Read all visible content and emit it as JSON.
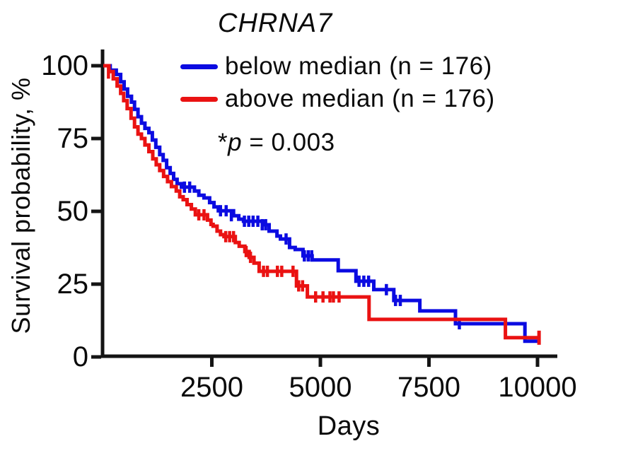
{
  "figure": {
    "title": "CHRNA7",
    "pvalue": {
      "prefix": "*",
      "symbol": "p",
      "rest": " = 0.003"
    }
  },
  "chart_data": {
    "type": "line",
    "variant": "kaplan-meier-step",
    "title": "CHRNA7",
    "xlabel": "Days",
    "ylabel": "Survival probability, %",
    "xlim": [
      0,
      10000
    ],
    "ylim": [
      0,
      100
    ],
    "x_ticks": [
      2500,
      5000,
      7500,
      10000
    ],
    "y_ticks": [
      100,
      75,
      50,
      25,
      0
    ],
    "grid": false,
    "legend_position": "top",
    "axis_color": "#141414",
    "annotation_pvalue": "*p = 0.003",
    "series": [
      {
        "id": "below-median",
        "name": "below median (n = 176)",
        "n": 176,
        "color": "#0b0be1",
        "steps": [
          [
            0,
            100
          ],
          [
            160,
            98.5
          ],
          [
            300,
            97
          ],
          [
            400,
            94.5
          ],
          [
            480,
            92
          ],
          [
            560,
            89.5
          ],
          [
            650,
            87.5
          ],
          [
            720,
            85
          ],
          [
            800,
            82.5
          ],
          [
            880,
            80.3
          ],
          [
            960,
            78.5
          ],
          [
            1050,
            77
          ],
          [
            1130,
            74.5
          ],
          [
            1210,
            72
          ],
          [
            1300,
            69.5
          ],
          [
            1380,
            67.5
          ],
          [
            1460,
            65
          ],
          [
            1540,
            63
          ],
          [
            1620,
            61
          ],
          [
            1700,
            59.5
          ],
          [
            1800,
            58.3
          ],
          [
            2100,
            57
          ],
          [
            2200,
            55.5
          ],
          [
            2320,
            54.6
          ],
          [
            2450,
            53
          ],
          [
            2550,
            51.5
          ],
          [
            2650,
            50.2
          ],
          [
            3000,
            48.5
          ],
          [
            3120,
            47.3
          ],
          [
            3230,
            46.6
          ],
          [
            3720,
            45.4
          ],
          [
            3820,
            43.2
          ],
          [
            4000,
            41.5
          ],
          [
            4080,
            40.5
          ],
          [
            4290,
            37.6
          ],
          [
            4420,
            36.9
          ],
          [
            4600,
            34.7
          ],
          [
            4810,
            33.3
          ],
          [
            5410,
            29.6
          ],
          [
            5820,
            26.0
          ],
          [
            6230,
            23.1
          ],
          [
            6690,
            19.4
          ],
          [
            7290,
            15.8
          ],
          [
            8110,
            11.4
          ],
          [
            9710,
            5.4
          ],
          [
            10000,
            5.4
          ]
        ],
        "censors": [
          [
            1870,
            58.3
          ],
          [
            1990,
            58.3
          ],
          [
            2700,
            50.2
          ],
          [
            2830,
            50.2
          ],
          [
            2950,
            48.5
          ],
          [
            3250,
            46.6
          ],
          [
            3350,
            46.6
          ],
          [
            3450,
            46.6
          ],
          [
            3560,
            46.6
          ],
          [
            3660,
            45.4
          ],
          [
            3740,
            45.4
          ],
          [
            4210,
            40.5
          ],
          [
            4630,
            34.7
          ],
          [
            4720,
            34.7
          ],
          [
            4800,
            34.7
          ],
          [
            5890,
            26.0
          ],
          [
            6000,
            26.0
          ],
          [
            6110,
            26.0
          ],
          [
            6520,
            23.1
          ],
          [
            6730,
            19.4
          ],
          [
            6840,
            19.4
          ],
          [
            8200,
            11.4
          ]
        ]
      },
      {
        "id": "above-median",
        "name": "above median (n = 176)",
        "n": 176,
        "color": "#ea1212",
        "steps": [
          [
            0,
            100
          ],
          [
            130,
            98
          ],
          [
            230,
            95.5
          ],
          [
            320,
            93
          ],
          [
            400,
            90.5
          ],
          [
            470,
            88
          ],
          [
            550,
            85.3
          ],
          [
            640,
            82
          ],
          [
            720,
            79
          ],
          [
            800,
            76.5
          ],
          [
            880,
            75
          ],
          [
            960,
            72.8
          ],
          [
            1050,
            70.5
          ],
          [
            1140,
            68
          ],
          [
            1220,
            66
          ],
          [
            1300,
            64
          ],
          [
            1390,
            62
          ],
          [
            1480,
            60.2
          ],
          [
            1570,
            58.5
          ],
          [
            1680,
            57
          ],
          [
            1760,
            55
          ],
          [
            1840,
            54
          ],
          [
            1930,
            52.3
          ],
          [
            2030,
            50.8
          ],
          [
            2120,
            48.8
          ],
          [
            2400,
            47
          ],
          [
            2480,
            45.5
          ],
          [
            2530,
            44.9
          ],
          [
            2620,
            43.2
          ],
          [
            2700,
            42
          ],
          [
            2780,
            41.3
          ],
          [
            3040,
            39.3
          ],
          [
            3130,
            38
          ],
          [
            3260,
            36.2
          ],
          [
            3360,
            34.2
          ],
          [
            3470,
            32.2
          ],
          [
            3590,
            29.4
          ],
          [
            4450,
            24.4
          ],
          [
            4700,
            20.6
          ],
          [
            6120,
            12.9
          ],
          [
            9260,
            6.6
          ],
          [
            10035,
            6.6
          ]
        ],
        "censors": [
          [
            120,
            97.5
          ],
          [
            2200,
            48.8
          ],
          [
            2320,
            48.8
          ],
          [
            2820,
            41.3
          ],
          [
            2910,
            41.3
          ],
          [
            3000,
            41.3
          ],
          [
            3290,
            36.2
          ],
          [
            3390,
            34.2
          ],
          [
            3690,
            29.4
          ],
          [
            3780,
            29.4
          ],
          [
            4010,
            29.4
          ],
          [
            4110,
            29.4
          ],
          [
            4370,
            29.4
          ],
          [
            4500,
            24.4
          ],
          [
            4590,
            24.4
          ],
          [
            4890,
            20.6
          ],
          [
            5060,
            20.6
          ],
          [
            5220,
            20.6
          ],
          [
            5300,
            20.6
          ],
          [
            5430,
            20.6
          ]
        ],
        "end_marker": [
          10035,
          6.6
        ]
      }
    ]
  }
}
